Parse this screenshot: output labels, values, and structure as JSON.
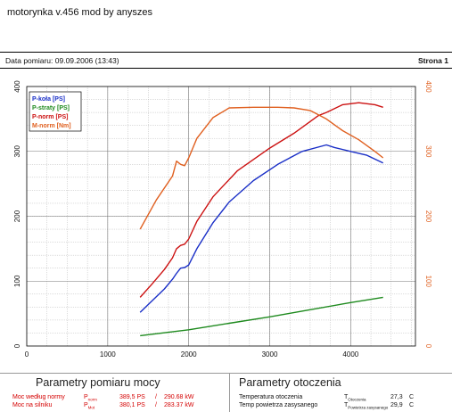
{
  "header": {
    "title": "motorynka v.456 mod by anyszes",
    "date_label": "Data pomiaru: 09.09.2006 (13:43)",
    "page_label": "Strona 1"
  },
  "chart_data": {
    "type": "line",
    "x_ticks": [
      "0",
      "1000",
      "2000",
      "3000",
      "4000"
    ],
    "x_range": [
      0,
      4800
    ],
    "y_left_ticks": [
      "0",
      "100",
      "200",
      "300",
      "400"
    ],
    "y_left_range": [
      0,
      400
    ],
    "y_right_ticks": [
      "0",
      "100",
      "200",
      "300",
      "400"
    ],
    "y_right_range": [
      0,
      400
    ],
    "grid": true,
    "legend_position": "top-left",
    "series": [
      {
        "name": "P-koła [PS]",
        "color": "#1a2fc7",
        "axis": "left",
        "x": [
          1400,
          1550,
          1700,
          1800,
          1850,
          1900,
          1950,
          2000,
          2100,
          2300,
          2500,
          2800,
          3100,
          3400,
          3700,
          3800,
          4000,
          4200,
          4400
        ],
        "y": [
          52,
          70,
          88,
          103,
          112,
          120,
          121,
          125,
          150,
          190,
          222,
          255,
          280,
          300,
          310,
          306,
          300,
          294,
          282
        ]
      },
      {
        "name": "P-straty [PS]",
        "color": "#1e8a1e",
        "axis": "left",
        "x": [
          1400,
          2000,
          2500,
          3000,
          3500,
          4000,
          4400
        ],
        "y": [
          16,
          25,
          35,
          45,
          56,
          67,
          75
        ]
      },
      {
        "name": "P-norm [PS]",
        "color": "#cc1111",
        "axis": "left",
        "x": [
          1400,
          1550,
          1700,
          1800,
          1850,
          1900,
          1950,
          2000,
          2100,
          2300,
          2600,
          3000,
          3300,
          3600,
          3700,
          3900,
          4100,
          4300,
          4400
        ],
        "y": [
          75,
          96,
          118,
          136,
          150,
          155,
          157,
          165,
          192,
          230,
          270,
          305,
          328,
          355,
          360,
          372,
          375,
          372,
          368
        ]
      },
      {
        "name": "M-norm [Nm]",
        "color": "#e06020",
        "axis": "right",
        "x": [
          1400,
          1600,
          1800,
          1850,
          1900,
          1950,
          2000,
          2100,
          2300,
          2500,
          2800,
          3100,
          3300,
          3500,
          3700,
          3900,
          4100,
          4300,
          4400
        ],
        "y": [
          180,
          225,
          262,
          285,
          280,
          278,
          290,
          320,
          352,
          367,
          368,
          368,
          367,
          363,
          350,
          332,
          318,
          300,
          290
        ]
      }
    ]
  },
  "params_left": {
    "title": "Parametry pomiaru mocy",
    "rows": [
      {
        "label": "Moc według normy",
        "sym": "P",
        "sub": "norm",
        "ps": "389,5 PS",
        "sep": "/",
        "kw": "290.68 kW"
      },
      {
        "label": "Moc na silniku",
        "sym": "P",
        "sub": "Mot",
        "ps": "380,1 PS",
        "sep": "/",
        "kw": "283.37 kW"
      }
    ]
  },
  "params_right": {
    "title": "Parametry otoczenia",
    "rows": [
      {
        "label": "Temperatura otoczenia",
        "sym": "T",
        "sub": "Otoczenia",
        "value": "27,3",
        "unit": "C"
      },
      {
        "label": "Temp powietrza zasysanego",
        "sym": "T",
        "sub": "Powietrza zasysanego",
        "value": "29,9",
        "unit": "C"
      }
    ]
  }
}
